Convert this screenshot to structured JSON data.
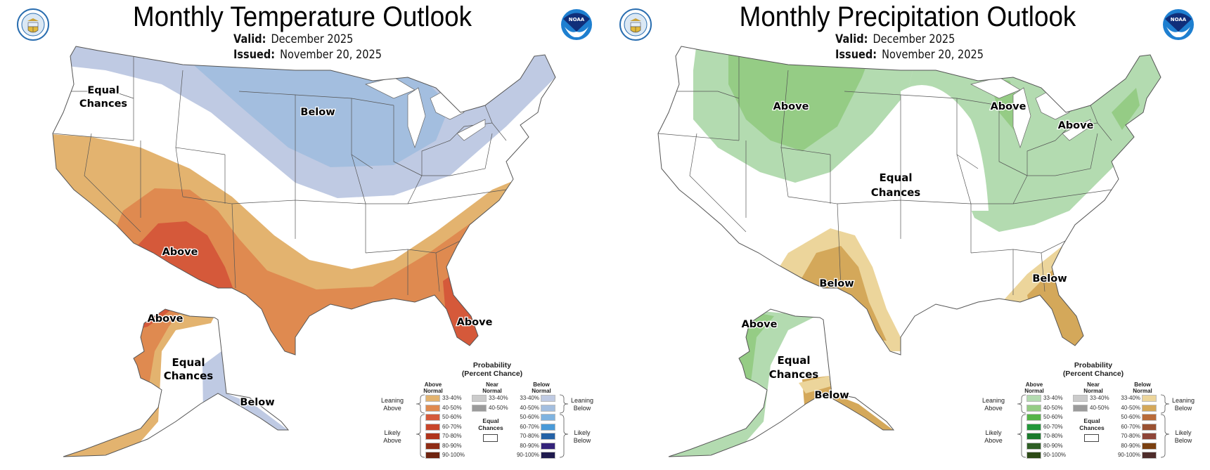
{
  "panels": {
    "temperature": {
      "title": "Monthly Temperature Outlook",
      "valid_label": "Valid:",
      "valid_value": "December 2025",
      "issued_label": "Issued:",
      "issued_value": "November 20, 2025",
      "map_labels": {
        "west": [
          "Equal",
          "Chances"
        ],
        "north": "Below",
        "southwest": "Above",
        "florida": "Above",
        "alaska_north": "Above",
        "alaska_center": [
          "Equal",
          "Chances"
        ],
        "alaska_southeast": "Below"
      },
      "legend": {
        "title_line1": "Probability",
        "title_line2": "(Percent Chance)",
        "above_header": [
          "Above",
          "Normal"
        ],
        "near_header": [
          "Near",
          "Normal"
        ],
        "below_header": [
          "Below",
          "Normal"
        ],
        "equal_chances": [
          "Equal",
          "Chances"
        ],
        "leaning_above": [
          "Leaning",
          "Above"
        ],
        "likely_above": [
          "Likely",
          "Above"
        ],
        "leaning_below": [
          "Leaning",
          "Below"
        ],
        "likely_below": [
          "Likely",
          "Below"
        ],
        "ranges": [
          "33-40%",
          "40-50%",
          "50-60%",
          "60-70%",
          "70-80%",
          "80-90%",
          "90-100%"
        ],
        "near_ranges": [
          "33-40%",
          "40-50%"
        ],
        "above_colors": [
          "#e3b36f",
          "#df8a50",
          "#d5593a",
          "#c8452a",
          "#b0341c",
          "#8f2c15",
          "#6e2410"
        ],
        "near_colors": [
          "#cbcbcb",
          "#9b9b9b"
        ],
        "below_colors": [
          "#bfcae3",
          "#a3bedf",
          "#7fb3e0",
          "#4a9ad8",
          "#2462a6",
          "#34237a",
          "#1f1a4d"
        ]
      }
    },
    "precipitation": {
      "title": "Monthly Precipitation Outlook",
      "valid_label": "Valid:",
      "valid_value": "December 2025",
      "issued_label": "Issued:",
      "issued_value": "November 20, 2025",
      "map_labels": {
        "northwest": "Above",
        "great_lakes": "Above",
        "northeast": "Above",
        "center": [
          "Equal",
          "Chances"
        ],
        "southwest": "Below",
        "southeast": "Below",
        "alaska_west": "Above",
        "alaska_center": [
          "Equal",
          "Chances"
        ],
        "alaska_southeast": "Below"
      },
      "legend": {
        "title_line1": "Probability",
        "title_line2": "(Percent Chance)",
        "above_header": [
          "Above",
          "Normal"
        ],
        "near_header": [
          "Near",
          "Normal"
        ],
        "below_header": [
          "Below",
          "Normal"
        ],
        "equal_chances": [
          "Equal",
          "Chances"
        ],
        "leaning_above": [
          "Leaning",
          "Above"
        ],
        "likely_above": [
          "Likely",
          "Above"
        ],
        "leaning_below": [
          "Leaning",
          "Below"
        ],
        "likely_below": [
          "Likely",
          "Below"
        ],
        "ranges": [
          "33-40%",
          "40-50%",
          "50-60%",
          "60-70%",
          "70-80%",
          "80-90%",
          "90-100%"
        ],
        "near_ranges": [
          "33-40%",
          "40-50%"
        ],
        "above_colors": [
          "#b3dbb0",
          "#95cc85",
          "#55b448",
          "#22973a",
          "#1b7a2c",
          "#2e5e24",
          "#2c4a16"
        ],
        "near_colors": [
          "#cbcbcb",
          "#9b9b9b"
        ],
        "below_colors": [
          "#ecd59b",
          "#d4a85a",
          "#b96b3a",
          "#9a5132",
          "#8e4538",
          "#7a4010",
          "#4e2c2a"
        ]
      }
    }
  },
  "logos": {
    "commerce_seal": "Department of Commerce seal",
    "noaa_logo_text": "NOAA"
  },
  "colors": {
    "border": "#555555",
    "temp_lean_above": "#e3b36f",
    "temp_above_40": "#df8a50",
    "temp_above_50": "#d5593a",
    "temp_lean_below": "#bfcae3",
    "temp_below_40": "#a3bedf",
    "precip_lean_above": "#b3dbb0",
    "precip_above_40": "#95cc85",
    "precip_lean_below": "#ecd59b",
    "precip_below_40": "#d4a85a",
    "noaa_blue": "#1e6fc4",
    "noaa_navy": "#102f7a",
    "seal_blue": "#2a6eb0",
    "seal_gold": "#e2b93b"
  }
}
